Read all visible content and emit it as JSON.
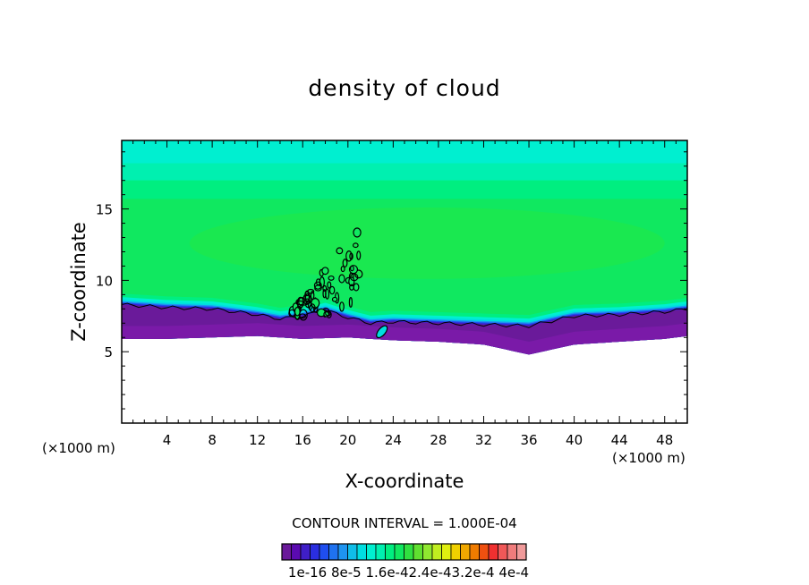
{
  "chart_data": {
    "type": "heatmap",
    "title": "density of cloud",
    "xlabel": "X-coordinate",
    "ylabel": "Z-coordinate",
    "x_unit": "(×1000 m)",
    "x_unit_right": "(×1000 m)",
    "xlim": [
      0,
      50
    ],
    "ylim": [
      0,
      19.8
    ],
    "x_ticks": [
      4,
      8,
      12,
      16,
      20,
      24,
      28,
      32,
      36,
      40,
      44,
      48
    ],
    "x_tick_labels": [
      "4",
      "8",
      "12",
      "16",
      "20",
      "24",
      "28",
      "32",
      "36",
      "40",
      "44",
      "48"
    ],
    "y_ticks": [
      5,
      10,
      15
    ],
    "y_tick_labels": [
      "5",
      "10",
      "15"
    ],
    "contour_interval": "CONTOUR INTERVAL = 1.000E-04",
    "colorbar_labels": [
      "1e-16",
      "8e-5",
      "1.6e-4",
      "2.4e-4",
      "3.2e-4",
      "4e-4"
    ],
    "colorbar_label_text": "1e-16  8e-5  1.6e-42.4e-43.2e-4 4e-4",
    "colorbar_colors": [
      "#6a1a9a",
      "#5a0ab0",
      "#3f1ec8",
      "#2a2ee0",
      "#1f4ef0",
      "#1f72f0",
      "#1e94f0",
      "#10bde8",
      "#00dde0",
      "#00efd0",
      "#00f0b0",
      "#00ee80",
      "#10e860",
      "#30e040",
      "#60e030",
      "#90e830",
      "#c0ee20",
      "#e0ee10",
      "#f0d000",
      "#f0a800",
      "#f07c00",
      "#f05010",
      "#f03030",
      "#f05858",
      "#f07c7c",
      "#f09a9a"
    ],
    "cloud_base_profile": {
      "x": [
        0,
        4,
        8,
        12,
        14,
        16,
        18,
        20,
        22,
        24,
        28,
        32,
        36,
        40,
        44,
        48,
        50
      ],
      "z": [
        8.3,
        8.1,
        8.0,
        7.6,
        7.3,
        7.5,
        7.9,
        7.4,
        7.0,
        7.1,
        7.0,
        6.9,
        6.8,
        7.5,
        7.6,
        7.8,
        8.0
      ]
    },
    "bottom_edge_profile": {
      "x": [
        0,
        4,
        8,
        12,
        16,
        20,
        24,
        28,
        32,
        36,
        40,
        44,
        48,
        50
      ],
      "z": [
        5.9,
        5.9,
        6.0,
        6.1,
        5.9,
        6.0,
        5.8,
        5.7,
        5.5,
        4.8,
        5.5,
        5.7,
        5.9,
        6.1
      ]
    },
    "layers": [
      {
        "z_offset": 0.0,
        "color": "#6a1a9a"
      },
      {
        "z_offset": 0.35,
        "color": "#3f1ec8"
      },
      {
        "z_offset": 0.65,
        "color": "#1f4ef0"
      },
      {
        "z_offset": 1.0,
        "color": "#1e94f0"
      },
      {
        "z_offset": 1.45,
        "color": "#00dde0"
      },
      {
        "z_offset": 2.1,
        "color": "#00efd0"
      },
      {
        "z_offset": 3.1,
        "color": "#00ee80"
      },
      {
        "z_offset": 4.3,
        "color": "#10e860"
      }
    ],
    "upper_bands": [
      {
        "z_top": 19.8,
        "color": "#00efd0"
      },
      {
        "z_top": 18.2,
        "color": "#00f0b0"
      },
      {
        "z_top": 17.0,
        "color": "#00ee80"
      },
      {
        "z_top": 15.7,
        "color": "#10e860"
      }
    ]
  }
}
